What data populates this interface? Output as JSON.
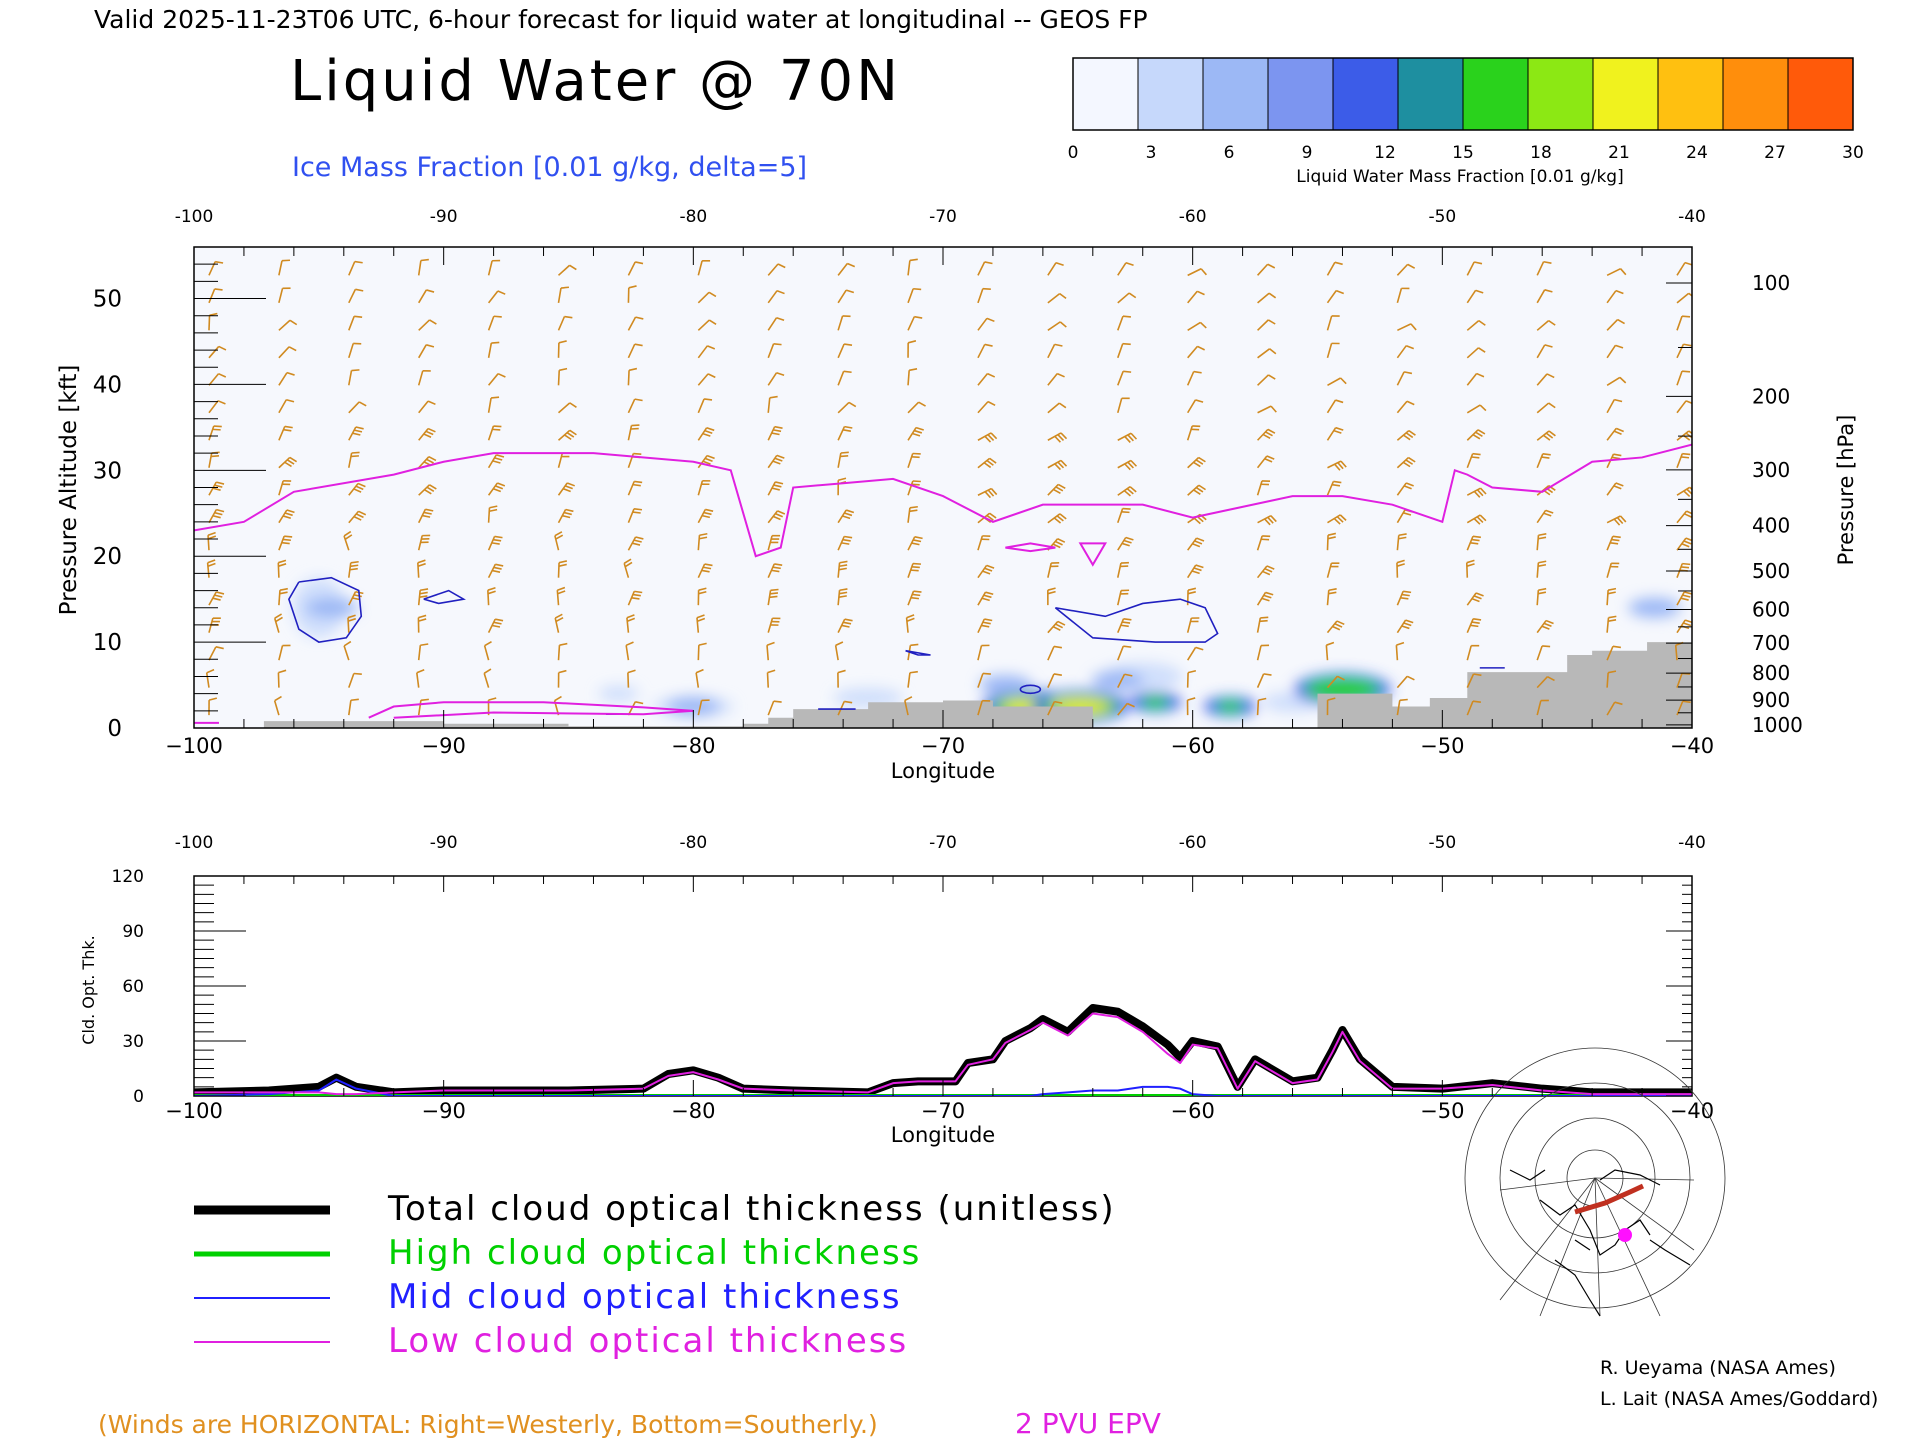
{
  "header": {
    "valid_line": "Valid 2025-11-23T06 UTC, 6-hour forecast for liquid water at longitudinal -- GEOS FP",
    "title": "Liquid Water @ 70N",
    "subtitle": "Ice Mass Fraction [0.01 g/kg, delta=5]"
  },
  "colorbar": {
    "ticks": [
      "0",
      "3",
      "6",
      "9",
      "12",
      "15",
      "18",
      "21",
      "24",
      "27",
      "30"
    ],
    "colors": [
      "#f4f7ff",
      "#c6d8fb",
      "#9cb8f5",
      "#7c95f0",
      "#3c5ce8",
      "#1e8fa0",
      "#2ad21c",
      "#8ce814",
      "#f0f21e",
      "#ffc010",
      "#ff8e0c",
      "#ff5a0a"
    ],
    "label": "Liquid Water Mass Fraction [0.01 g/kg]"
  },
  "chart_data": [
    {
      "type": "heatmap",
      "xlabel": "Longitude",
      "ylabel": "Pressure Altitude [kft]",
      "ylabel_right": "Pressure [hPa]",
      "xlim": [
        -100,
        -40
      ],
      "ylim": [
        0,
        56
      ],
      "x_ticks": [
        "-100",
        "-90",
        "-80",
        "-70",
        "-60",
        "-50",
        "-40"
      ],
      "x_ticks_bottom": [
        "−100",
        "−90",
        "−80",
        "−70",
        "−60",
        "−50",
        "−40"
      ],
      "y_ticks": [
        "0",
        "10",
        "20",
        "30",
        "40",
        "50"
      ],
      "pressure_ticks": [
        "100",
        "200",
        "300",
        "400",
        "500",
        "600",
        "700",
        "800",
        "900",
        "1000"
      ],
      "tropopause_2pvu": {
        "lon": [
          -100,
          -98,
          -96,
          -92,
          -90,
          -88,
          -84,
          -80,
          -78.5,
          -77.5,
          -76.5,
          -76,
          -74,
          -72,
          -70,
          -68,
          -66,
          -62,
          -60,
          -56,
          -54,
          -52,
          -50,
          -49.5,
          -49,
          -48,
          -46,
          -44,
          -42,
          -40
        ],
        "kft": [
          23,
          24,
          27.5,
          29.5,
          31,
          32,
          32,
          31,
          30,
          20,
          21,
          28,
          28.5,
          29,
          27,
          24,
          26,
          26,
          24.5,
          27,
          27,
          26,
          24,
          30,
          29.5,
          28,
          27.5,
          31,
          31.5,
          33
        ]
      },
      "liquid_water_blobs": [
        {
          "lon": -66.5,
          "kft": 2.5,
          "value": 21
        },
        {
          "lon": -64.5,
          "kft": 2.5,
          "value": 18
        },
        {
          "lon": -61.5,
          "kft": 3,
          "value": 14
        },
        {
          "lon": -58.5,
          "kft": 2.5,
          "value": 12
        },
        {
          "lon": -54,
          "kft": 4.5,
          "value": 17
        },
        {
          "lon": -67.5,
          "kft": 5,
          "value": 10
        },
        {
          "lon": -63,
          "kft": 5.5,
          "value": 8
        },
        {
          "lon": -94.5,
          "kft": 14,
          "value": 3
        },
        {
          "lon": -80,
          "kft": 2.5,
          "value": 8
        },
        {
          "lon": -41.5,
          "kft": 14,
          "value": 4
        }
      ],
      "ice_contours": [
        {
          "label": "1",
          "lon": [
            -95.8,
            -94.5,
            -93.4,
            -93.3,
            -93.9,
            -95,
            -95.8,
            -96.2,
            -95.8
          ],
          "kft": [
            17,
            17.5,
            16,
            13,
            10.5,
            10,
            11.5,
            15,
            17
          ]
        },
        {
          "label": "1",
          "lon": [
            -90.8,
            -89.8,
            -89.2,
            -90.2,
            -90.8
          ],
          "kft": [
            15,
            16,
            15,
            14.5,
            15
          ]
        },
        {
          "label": "1",
          "lon": [
            -65.5,
            -63.5,
            -62,
            -60.5,
            -59.5,
            -59,
            -59.5,
            -61.5,
            -64,
            -65.5
          ],
          "kft": [
            14,
            13,
            14.5,
            15,
            14,
            11,
            10,
            10,
            10.5,
            14
          ]
        },
        {
          "label": "1",
          "lon": [
            -71.5,
            -70.5,
            -71,
            -71.5
          ],
          "kft": [
            9,
            8.5,
            8.5,
            9
          ]
        }
      ],
      "surface_steps": {
        "lon": [
          -100,
          -97.2,
          -90,
          -85,
          -78,
          -77,
          -76,
          -73,
          -70,
          -68,
          -64,
          -60,
          -56,
          -55,
          -53.5,
          -52,
          -50.5,
          -49,
          -45,
          -44,
          -41.8,
          -40
        ],
        "kft": [
          0,
          0.8,
          0.5,
          0.2,
          0.5,
          1.2,
          2.2,
          3,
          3.2,
          2.5,
          0,
          0,
          0,
          4,
          4,
          2.5,
          3.5,
          6.5,
          8.5,
          9,
          10,
          11
        ]
      }
    },
    {
      "type": "line",
      "xlabel": "Longitude",
      "ylabel": "Cld. Opt. Thk.",
      "xlim": [
        -100,
        -40
      ],
      "ylim": [
        0,
        120
      ],
      "x_ticks": [
        "-100",
        "-90",
        "-80",
        "-70",
        "-60",
        "-50",
        "-40"
      ],
      "x_ticks_bottom": [
        "−100",
        "−90",
        "−80",
        "−70",
        "−60",
        "−50",
        "−40"
      ],
      "y_ticks": [
        "0",
        "30",
        "60",
        "90",
        "120"
      ],
      "x": [
        -100,
        -97,
        -95,
        -94.3,
        -93.5,
        -92,
        -90,
        -85,
        -82,
        -81,
        -80,
        -79,
        -78,
        -76,
        -73,
        -72,
        -71,
        -69.5,
        -69,
        -68,
        -67.5,
        -66.5,
        -66,
        -65,
        -64,
        -63,
        -62,
        -61,
        -60.5,
        -60,
        -59,
        -58.2,
        -57.5,
        -56,
        -55,
        -54.4,
        -54,
        -53.3,
        -52,
        -50,
        -48,
        -46,
        -44,
        -40
      ],
      "series": [
        {
          "name": "Total cloud optical thickness (unitless)",
          "color": "#000000",
          "values": [
            2,
            3,
            5,
            10,
            5,
            2,
            3,
            3,
            4,
            12,
            14,
            10,
            4,
            3,
            2,
            7,
            8,
            8,
            18,
            20,
            30,
            37,
            42,
            35,
            48,
            46,
            38,
            28,
            21,
            30,
            27,
            5,
            20,
            8,
            10,
            25,
            36,
            20,
            5,
            4,
            7,
            4,
            2,
            2
          ]
        },
        {
          "name": "High cloud optical thickness",
          "color": "#00d000",
          "values": [
            0,
            0,
            0,
            0,
            0,
            0,
            0,
            0,
            0,
            0,
            0,
            0,
            0,
            0,
            0,
            0,
            0,
            0,
            0,
            0,
            0,
            0,
            0,
            0,
            0,
            0,
            0,
            0,
            0,
            0,
            0,
            0,
            0,
            0,
            0,
            0,
            0,
            0,
            0,
            0,
            0,
            0,
            0,
            0
          ]
        },
        {
          "name": "Mid cloud optical thickness",
          "color": "#2020ff",
          "values": [
            0,
            1,
            3,
            9,
            4,
            0,
            0,
            0,
            0,
            0,
            0,
            0,
            0,
            0,
            0,
            0,
            0,
            0,
            0,
            0,
            0,
            0,
            1,
            2,
            3,
            3,
            5,
            5,
            4,
            1,
            0,
            0,
            0,
            0,
            0,
            0,
            0,
            0,
            0,
            0,
            0,
            0,
            0,
            0
          ]
        },
        {
          "name": "Low cloud optical thickness",
          "color": "#e020e0",
          "values": [
            2,
            2,
            2,
            1,
            1,
            2,
            3,
            3,
            4,
            11,
            13,
            9,
            4,
            3,
            2,
            7,
            8,
            8,
            17,
            20,
            29,
            36,
            40,
            33,
            45,
            43,
            35,
            23,
            18,
            28,
            26,
            4,
            19,
            7,
            9,
            24,
            35,
            19,
            4,
            4,
            6,
            3,
            1,
            1
          ]
        }
      ]
    }
  ],
  "legend": {
    "items": [
      {
        "label": "Total cloud optical thickness (unitless)",
        "color": "#000000"
      },
      {
        "label": "High cloud optical thickness",
        "color": "#00d000"
      },
      {
        "label": "Mid cloud optical thickness",
        "color": "#2020ff"
      },
      {
        "label": "Low cloud optical thickness",
        "color": "#e020e0"
      }
    ]
  },
  "footer": {
    "winds_note": "(Winds are HORIZONTAL: Right=Westerly, Bottom=Southerly.)",
    "epv_label": "2 PVU EPV",
    "credit_1": "R. Ueyama (NASA Ames)",
    "credit_2": "L. Lait (NASA Ames/Goddard)"
  },
  "colors": {
    "wind_barb": "#d08a20",
    "ice_contour": "#2020c0",
    "tropopause": "#e020e0",
    "surface": "#b8b8b8",
    "title_blue": "#3050f0",
    "note_orange": "#e09020",
    "epv_magenta": "#e020e0"
  }
}
